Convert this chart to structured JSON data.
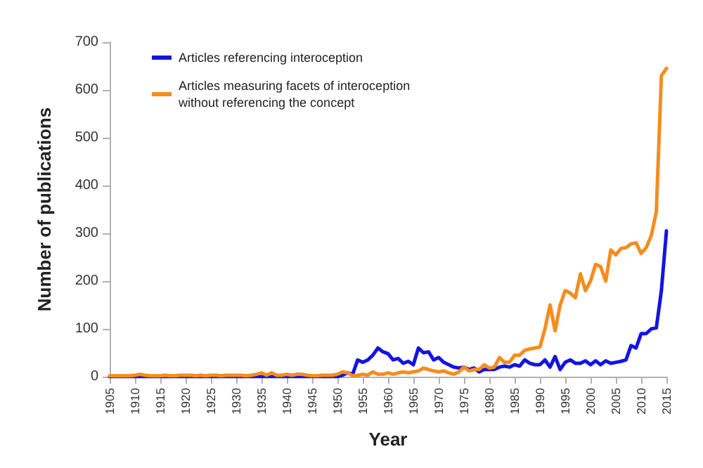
{
  "chart_data": {
    "type": "line",
    "xlabel": "Year",
    "ylabel": "Number of publications",
    "x": [
      1905,
      1906,
      1907,
      1908,
      1909,
      1910,
      1911,
      1912,
      1913,
      1914,
      1915,
      1916,
      1917,
      1918,
      1919,
      1920,
      1921,
      1922,
      1923,
      1924,
      1925,
      1926,
      1927,
      1928,
      1929,
      1930,
      1931,
      1932,
      1933,
      1934,
      1935,
      1936,
      1937,
      1938,
      1939,
      1940,
      1941,
      1942,
      1943,
      1944,
      1945,
      1946,
      1947,
      1948,
      1949,
      1950,
      1951,
      1952,
      1953,
      1954,
      1955,
      1956,
      1957,
      1958,
      1959,
      1960,
      1961,
      1962,
      1963,
      1964,
      1965,
      1966,
      1967,
      1968,
      1969,
      1970,
      1971,
      1972,
      1973,
      1974,
      1975,
      1976,
      1977,
      1978,
      1979,
      1980,
      1981,
      1982,
      1983,
      1984,
      1985,
      1986,
      1987,
      1988,
      1989,
      1990,
      1991,
      1992,
      1993,
      1994,
      1995,
      1996,
      1997,
      1998,
      1999,
      2000,
      2001,
      2002,
      2003,
      2004,
      2005,
      2006,
      2007,
      2008,
      2009,
      2010,
      2011,
      2012,
      2013,
      2014,
      2015
    ],
    "series": [
      {
        "name": "Articles referencing interoception",
        "color": "#1414e0",
        "values": [
          0,
          0,
          0,
          0,
          0,
          0,
          0,
          0,
          0,
          0,
          0,
          0,
          0,
          0,
          0,
          0,
          0,
          0,
          0,
          0,
          0,
          0,
          0,
          0,
          0,
          0,
          0,
          0,
          0,
          0,
          0,
          0,
          0,
          0,
          0,
          0,
          0,
          0,
          0,
          0,
          0,
          0,
          0,
          0,
          0,
          0,
          3,
          8,
          5,
          35,
          30,
          35,
          45,
          60,
          52,
          48,
          35,
          38,
          28,
          32,
          25,
          60,
          50,
          52,
          35,
          40,
          30,
          25,
          20,
          18,
          20,
          15,
          18,
          10,
          15,
          15,
          15,
          20,
          22,
          20,
          25,
          22,
          35,
          28,
          25,
          25,
          35,
          20,
          42,
          15,
          30,
          35,
          28,
          28,
          33,
          25,
          33,
          25,
          33,
          28,
          30,
          32,
          35,
          65,
          60,
          90,
          90,
          100,
          102,
          180,
          305
        ]
      },
      {
        "name": "Articles measuring facets of interoception without referencing the concept",
        "color": "#f58d1e",
        "values": [
          2,
          2,
          2,
          2,
          2,
          3,
          5,
          3,
          2,
          2,
          2,
          3,
          2,
          2,
          3,
          3,
          3,
          2,
          3,
          2,
          3,
          3,
          2,
          3,
          3,
          3,
          3,
          2,
          3,
          5,
          8,
          3,
          8,
          3,
          3,
          5,
          3,
          5,
          5,
          3,
          2,
          2,
          3,
          3,
          3,
          5,
          10,
          8,
          2,
          3,
          5,
          3,
          10,
          5,
          5,
          8,
          5,
          8,
          10,
          8,
          10,
          12,
          18,
          15,
          12,
          10,
          12,
          8,
          5,
          10,
          20,
          12,
          15,
          15,
          25,
          18,
          20,
          40,
          30,
          30,
          45,
          45,
          55,
          58,
          60,
          62,
          100,
          150,
          96,
          150,
          180,
          175,
          165,
          215,
          180,
          200,
          235,
          230,
          200,
          265,
          255,
          268,
          270,
          278,
          280,
          258,
          270,
          295,
          345,
          630,
          645
        ]
      }
    ],
    "xlim": [
      1905,
      2015
    ],
    "xticks": [
      1905,
      1910,
      1915,
      1920,
      1925,
      1930,
      1935,
      1940,
      1945,
      1950,
      1955,
      1960,
      1965,
      1970,
      1975,
      1980,
      1985,
      1990,
      1995,
      2000,
      2005,
      2010,
      2015
    ],
    "ylim": [
      0,
      700
    ],
    "yticks": [
      0,
      100,
      200,
      300,
      400,
      500,
      600,
      700
    ],
    "grid": false,
    "legend": "top left",
    "marker": "none",
    "line_style": "solid"
  }
}
